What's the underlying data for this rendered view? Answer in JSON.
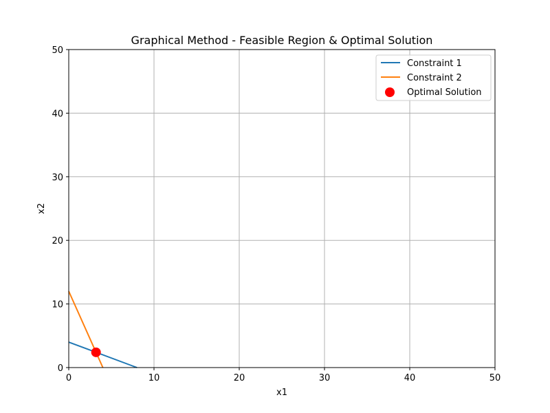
{
  "chart_data": {
    "type": "line",
    "title": "Graphical Method - Feasible Region & Optimal Solution",
    "xlabel": "x1",
    "ylabel": "x2",
    "xlim": [
      0,
      50
    ],
    "ylim": [
      0,
      50
    ],
    "xticks": [
      0,
      10,
      20,
      30,
      40,
      50
    ],
    "yticks": [
      0,
      10,
      20,
      30,
      40,
      50
    ],
    "grid": true,
    "legend_position": "top-right",
    "series": [
      {
        "name": "Constraint 1",
        "color": "#1f77b4",
        "x": [
          0,
          8
        ],
        "y": [
          4,
          0
        ]
      },
      {
        "name": "Constraint 2",
        "color": "#ff7f0e",
        "x": [
          0,
          4
        ],
        "y": [
          12,
          0
        ]
      }
    ],
    "points": [
      {
        "name": "Optimal Solution",
        "color": "#ff0000",
        "x": 3.2,
        "y": 2.4
      }
    ]
  }
}
